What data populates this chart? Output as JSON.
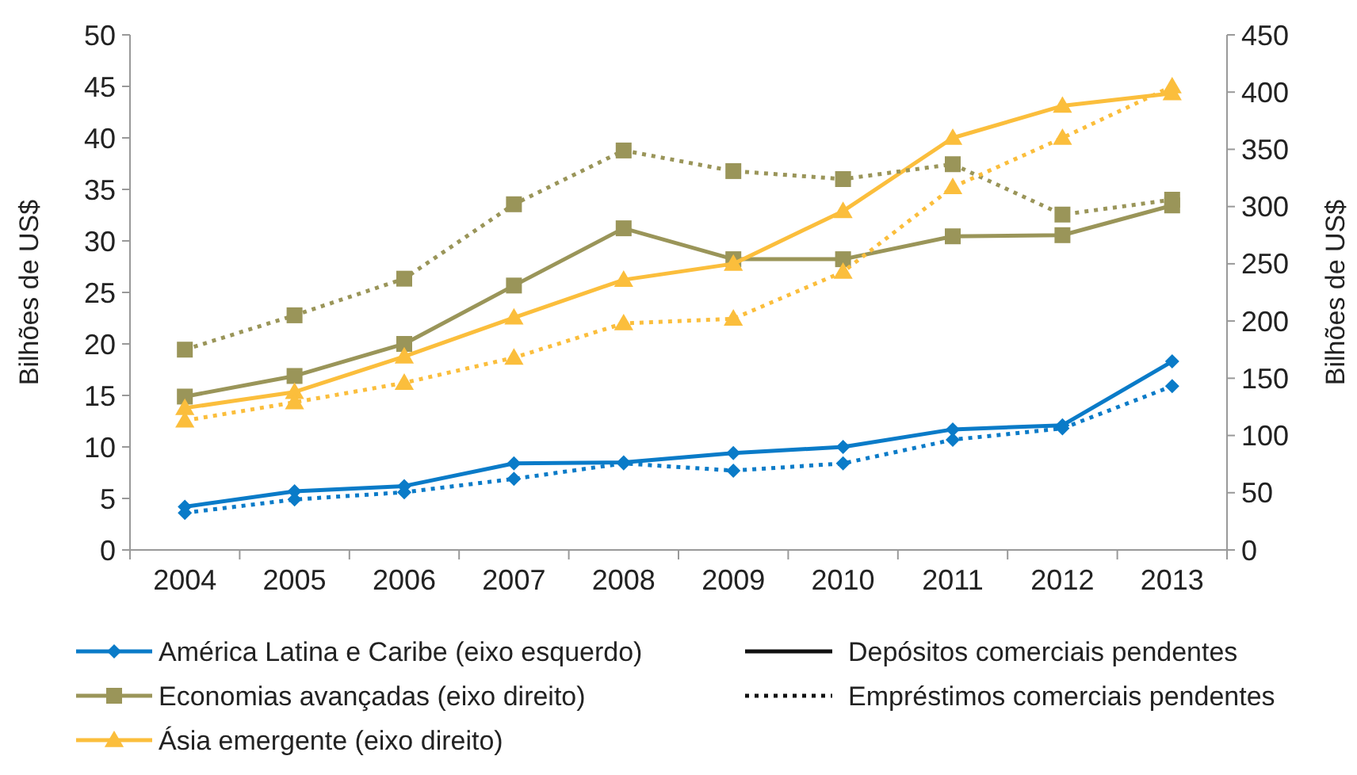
{
  "chart_data": {
    "type": "line",
    "categories": [
      "2004",
      "2005",
      "2006",
      "2007",
      "2008",
      "2009",
      "2010",
      "2011",
      "2012",
      "2013"
    ],
    "ylabel": "Bilhões de US$",
    "y2label": "Bilhões de US$",
    "ylim": [
      0,
      50
    ],
    "yticks": [
      0,
      5,
      10,
      15,
      20,
      25,
      30,
      35,
      40,
      45,
      50
    ],
    "y2lim": [
      0,
      450
    ],
    "y2ticks": [
      0,
      50,
      100,
      150,
      200,
      250,
      300,
      350,
      400,
      450
    ],
    "legend": "bottom",
    "grid": false,
    "annotations": [
      "Depósitos comerciais pendentes",
      "Empréstimos comerciais pendentes"
    ],
    "series": [
      {
        "name": "América Latina e Caribe (eixo esquerdo)",
        "color": "#0a7bc8",
        "marker": "diamond",
        "line_style": "solid",
        "values": [
          4.2,
          5.7,
          6.2,
          8.4,
          8.5,
          9.4,
          10.0,
          11.7,
          12.1,
          18.3
        ]
      },
      {
        "name": "Economias avançadas (eixo direito)",
        "color": "#9a9559",
        "marker": "square",
        "line_style": "solid",
        "axis": "y2",
        "values": [
          134,
          152,
          180,
          231,
          281,
          254,
          254,
          274,
          275,
          301
        ]
      },
      {
        "name": "Ásia emergente (eixo direito)",
        "color": "#fbbe3c",
        "marker": "triangle",
        "line_style": "solid",
        "axis": "y2",
        "values": [
          124,
          138,
          169,
          203,
          236,
          250,
          296,
          360,
          388,
          399
        ]
      },
      {
        "color": "#0a7bc8",
        "marker": "diamond",
        "line_style": "dotted",
        "values": [
          3.6,
          4.9,
          5.6,
          6.9,
          8.4,
          7.7,
          8.4,
          10.7,
          11.8,
          15.9
        ]
      },
      {
        "color": "#9a9559",
        "marker": "square",
        "line_style": "dotted",
        "axis": "y2",
        "values": [
          175,
          205,
          237,
          302,
          349,
          331,
          324,
          337,
          293,
          306
        ]
      },
      {
        "color": "#fbbe3c",
        "marker": "triangle",
        "line_style": "dotted",
        "axis": "y2",
        "values": [
          113,
          129,
          146,
          168,
          198,
          202,
          243,
          317,
          360,
          405
        ]
      }
    ]
  }
}
